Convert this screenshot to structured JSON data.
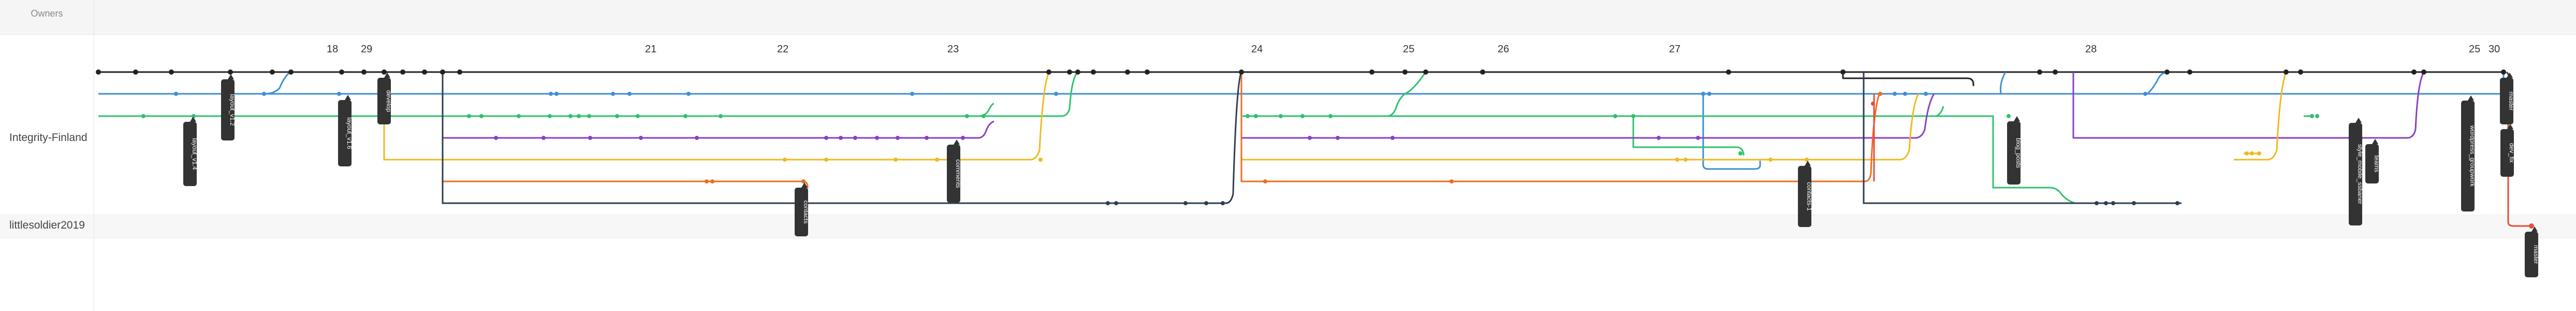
{
  "header": {
    "owners_title": "Owners"
  },
  "owners": [
    "Integrity-Finland",
    "littlesoldier2019"
  ],
  "dates": [
    "18",
    "29",
    "21",
    "22",
    "23",
    "24",
    "25",
    "26",
    "27",
    "28",
    "25",
    "30"
  ],
  "colors": {
    "main": "#222222",
    "blue": "#3d8fd6",
    "green": "#2ec26b",
    "purple": "#8a3fc2",
    "yellow": "#f0b91f",
    "orange": "#ee6c23",
    "navy": "#2c3e50",
    "red": "#e74c3c"
  },
  "branch_labels": [
    "layout_v1.4",
    "layout_v1.2",
    "layout_v1.6",
    "develop",
    "contacts",
    "comments",
    "contacts-1",
    "blog_posts",
    "style_mobile_ssbaner",
    "teams",
    "wordpress_groupwork",
    "dev_fix",
    "master",
    "master"
  ]
}
